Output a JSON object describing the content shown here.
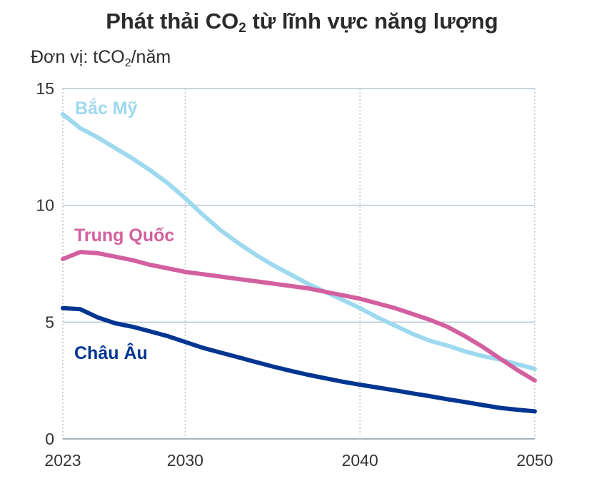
{
  "title": {
    "prefix": "Phát thải CO",
    "sub": "2",
    "suffix": " từ lĩnh vực năng lượng"
  },
  "unit": {
    "prefix": "Đơn vị: tCO",
    "sub": "2",
    "suffix": "/năm"
  },
  "chart_data": {
    "type": "line",
    "title": "Phát thải CO2 từ lĩnh vực năng lượng",
    "ylabel": "Đơn vị: tCO2/năm",
    "xlabel": "",
    "xlim": [
      2023,
      2050
    ],
    "ylim": [
      0,
      15
    ],
    "x_ticks": [
      2023,
      2030,
      2040,
      2050
    ],
    "x_tick_labels": [
      "2023",
      "2030",
      "2040",
      "2050"
    ],
    "y_ticks": [
      0,
      5,
      10,
      15
    ],
    "y_tick_labels": [
      "0",
      "5",
      "10",
      "15"
    ],
    "grid": "vertical dotted at x ticks, horizontal solid at y ticks",
    "series": [
      {
        "name": "Bắc Mỹ",
        "color": "#9dd9ef",
        "x": [
          2023,
          2024,
          2025,
          2026,
          2027,
          2028,
          2029,
          2030,
          2031,
          2032,
          2033,
          2034,
          2035,
          2036,
          2037,
          2038,
          2039,
          2040,
          2041,
          2042,
          2043,
          2044,
          2045,
          2046,
          2047,
          2048,
          2049,
          2050
        ],
        "values": [
          13.9,
          13.3,
          12.9,
          12.45,
          12.0,
          11.5,
          10.95,
          10.3,
          9.6,
          8.95,
          8.4,
          7.9,
          7.45,
          7.05,
          6.65,
          6.3,
          5.95,
          5.6,
          5.2,
          4.85,
          4.5,
          4.2,
          4.0,
          3.75,
          3.55,
          3.4,
          3.2,
          3.0
        ]
      },
      {
        "name": "Trung Quốc",
        "color": "#d3609e",
        "x": [
          2023,
          2024,
          2025,
          2026,
          2027,
          2028,
          2029,
          2030,
          2031,
          2032,
          2033,
          2034,
          2035,
          2036,
          2037,
          2038,
          2039,
          2040,
          2041,
          2042,
          2043,
          2044,
          2045,
          2046,
          2047,
          2048,
          2049,
          2050
        ],
        "values": [
          7.7,
          8.0,
          7.95,
          7.8,
          7.65,
          7.45,
          7.3,
          7.15,
          7.05,
          6.95,
          6.85,
          6.75,
          6.65,
          6.55,
          6.45,
          6.3,
          6.15,
          6.0,
          5.8,
          5.6,
          5.35,
          5.1,
          4.8,
          4.4,
          3.95,
          3.45,
          2.95,
          2.5
        ]
      },
      {
        "name": "Châu Âu",
        "color": "#003591",
        "x": [
          2023,
          2024,
          2025,
          2026,
          2027,
          2028,
          2029,
          2030,
          2031,
          2032,
          2033,
          2034,
          2035,
          2036,
          2037,
          2038,
          2039,
          2040,
          2041,
          2042,
          2043,
          2044,
          2045,
          2046,
          2047,
          2048,
          2049,
          2050
        ],
        "values": [
          5.6,
          5.55,
          5.2,
          4.95,
          4.8,
          4.6,
          4.4,
          4.15,
          3.9,
          3.7,
          3.5,
          3.3,
          3.1,
          2.92,
          2.75,
          2.6,
          2.45,
          2.32,
          2.2,
          2.08,
          1.95,
          1.83,
          1.7,
          1.58,
          1.45,
          1.33,
          1.25,
          1.18
        ]
      }
    ]
  }
}
